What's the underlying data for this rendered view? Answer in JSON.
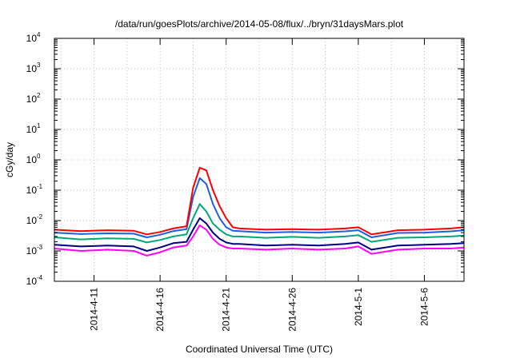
{
  "chart_data": {
    "type": "line",
    "title": "/data/run/goesPlots/archive/2014-05-08/flux/../bryn/31daysMars.plot",
    "xlabel": "Coordinated Universal Time (UTC)",
    "ylabel": "cGy/day",
    "yscale": "log",
    "ylim": [
      0.0001,
      10000
    ],
    "xlim": [
      "2014-04-08",
      "2014-05-09"
    ],
    "grid": true,
    "legend": "none",
    "x_ticks": [
      "2014-4-11",
      "2014-4-16",
      "2014-4-21",
      "2014-4-26",
      "2014-5-1",
      "2014-5-6"
    ],
    "y_ticks": [
      {
        "base": "10",
        "exp": "-4",
        "value": 0.0001
      },
      {
        "base": "10",
        "exp": "-3",
        "value": 0.001
      },
      {
        "base": "10",
        "exp": "-2",
        "value": 0.01
      },
      {
        "base": "10",
        "exp": "-1",
        "value": 0.1
      },
      {
        "base": "10",
        "exp": "0",
        "value": 1
      },
      {
        "base": "10",
        "exp": "1",
        "value": 10
      },
      {
        "base": "10",
        "exp": "2",
        "value": 100
      },
      {
        "base": "10",
        "exp": "3",
        "value": 1000
      },
      {
        "base": "10",
        "exp": "4",
        "value": 10000
      }
    ],
    "x": [
      "2014-04-08",
      "2014-04-10",
      "2014-04-12",
      "2014-04-14",
      "2014-04-15",
      "2014-04-16",
      "2014-04-17",
      "2014-04-18",
      "2014-04-18T12",
      "2014-04-19",
      "2014-04-19T12",
      "2014-04-20",
      "2014-04-20T12",
      "2014-04-21",
      "2014-04-21T12",
      "2014-04-22",
      "2014-04-24",
      "2014-04-26",
      "2014-04-28",
      "2014-04-30",
      "2014-05-01",
      "2014-05-02",
      "2014-05-04",
      "2014-05-06",
      "2014-05-08",
      "2014-05-09"
    ],
    "series": [
      {
        "color": "#ff0000",
        "values": [
          0.005,
          0.0045,
          0.0048,
          0.0046,
          0.0035,
          0.0042,
          0.0055,
          0.0065,
          0.12,
          0.55,
          0.45,
          0.1,
          0.03,
          0.012,
          0.006,
          0.0055,
          0.005,
          0.0052,
          0.005,
          0.0055,
          0.006,
          0.0035,
          0.0048,
          0.005,
          0.0055,
          0.006
        ]
      },
      {
        "color": "#1e5fe0",
        "values": [
          0.004,
          0.0036,
          0.0038,
          0.0037,
          0.0028,
          0.0034,
          0.0045,
          0.0052,
          0.06,
          0.25,
          0.16,
          0.035,
          0.012,
          0.006,
          0.0046,
          0.0045,
          0.004,
          0.0042,
          0.004,
          0.0044,
          0.0048,
          0.0028,
          0.0039,
          0.004,
          0.0044,
          0.0048
        ]
      },
      {
        "color": "#00a878",
        "values": [
          0.0028,
          0.0024,
          0.0026,
          0.0025,
          0.0019,
          0.0023,
          0.003,
          0.0035,
          0.012,
          0.035,
          0.02,
          0.008,
          0.005,
          0.0035,
          0.003,
          0.003,
          0.0027,
          0.0029,
          0.0027,
          0.003,
          0.0033,
          0.002,
          0.0027,
          0.0028,
          0.003,
          0.0032
        ]
      },
      {
        "color": "#000080",
        "values": [
          0.0016,
          0.0014,
          0.0015,
          0.0014,
          0.001,
          0.0013,
          0.0018,
          0.002,
          0.005,
          0.012,
          0.008,
          0.004,
          0.0025,
          0.0019,
          0.0017,
          0.0017,
          0.0015,
          0.0016,
          0.0015,
          0.0017,
          0.0019,
          0.0011,
          0.0015,
          0.0016,
          0.0017,
          0.0018
        ]
      },
      {
        "color": "#ff00ff",
        "values": [
          0.0012,
          0.001,
          0.0011,
          0.001,
          0.0007,
          0.0009,
          0.0013,
          0.0015,
          0.003,
          0.007,
          0.005,
          0.0025,
          0.0016,
          0.0013,
          0.0012,
          0.0012,
          0.0011,
          0.0012,
          0.0011,
          0.0012,
          0.0014,
          0.0008,
          0.0011,
          0.0012,
          0.0012,
          0.0013
        ]
      }
    ]
  }
}
